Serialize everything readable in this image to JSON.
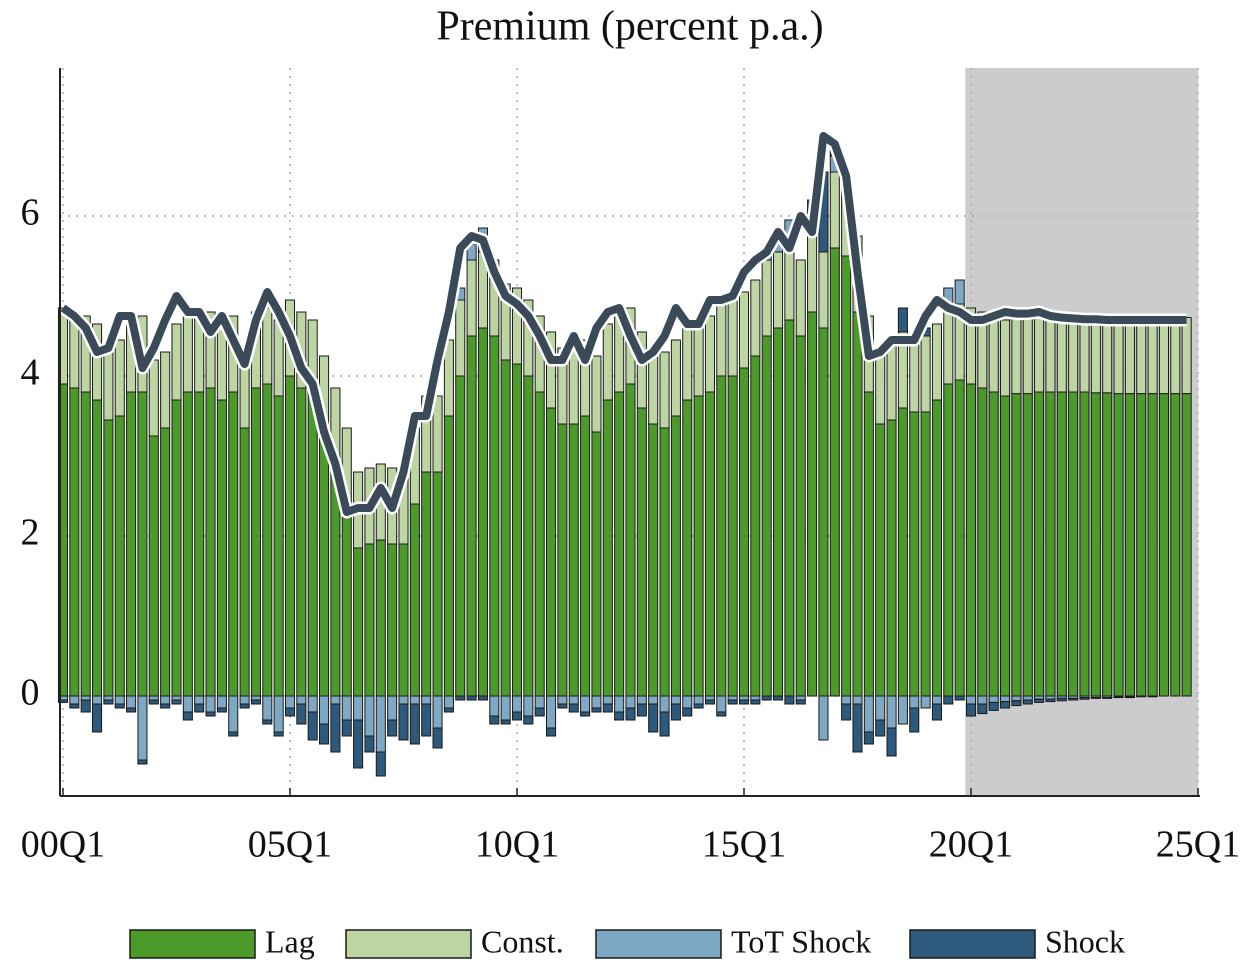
{
  "chart_data": {
    "type": "stacked-bar",
    "title": "Premium (percent p.a.)",
    "x": [
      0,
      1,
      2,
      3,
      4,
      5,
      6,
      7,
      8,
      9,
      10,
      11,
      12,
      13,
      14,
      15,
      16,
      17,
      18,
      19,
      20,
      21,
      22,
      23,
      24,
      25,
      26,
      27,
      28,
      29,
      30,
      31,
      32,
      33,
      34,
      35,
      36,
      37,
      38,
      39,
      40,
      41,
      42,
      43,
      44,
      45,
      46,
      47,
      48,
      49,
      50,
      51,
      52,
      53,
      54,
      55,
      56,
      57,
      58,
      59,
      60,
      61,
      62,
      63,
      64,
      65,
      66,
      67,
      68,
      69,
      70,
      71,
      72,
      73,
      74,
      75,
      76,
      77,
      78,
      79,
      80,
      81,
      82,
      83,
      84,
      85,
      86,
      87,
      88,
      89,
      90,
      91,
      92,
      93,
      94,
      95,
      96,
      97,
      98,
      99
    ],
    "xlim": [
      0,
      100
    ],
    "xticks": [
      {
        "value": 0,
        "label": "00Q1"
      },
      {
        "value": 20,
        "label": "05Q1"
      },
      {
        "value": 40,
        "label": "10Q1"
      },
      {
        "value": 60,
        "label": "15Q1"
      },
      {
        "value": 80,
        "label": "20Q1"
      },
      {
        "value": 100,
        "label": "25Q1"
      }
    ],
    "ylim": [
      -1.25,
      7.85
    ],
    "yticks": [
      0,
      2,
      4,
      6
    ],
    "grid": true,
    "shaded_xrange": [
      79.5,
      100
    ],
    "series": [
      {
        "name": "Lag",
        "color": "#4c9a2a",
        "values": [
          3.9,
          3.85,
          3.8,
          3.7,
          3.45,
          3.5,
          3.8,
          3.8,
          3.25,
          3.35,
          3.7,
          3.8,
          3.8,
          3.85,
          3.7,
          3.8,
          3.35,
          3.85,
          3.9,
          3.75,
          4.0,
          3.85,
          3.75,
          3.3,
          2.9,
          2.4,
          1.85,
          1.9,
          1.95,
          1.9,
          1.9,
          2.4,
          2.8,
          2.8,
          3.5,
          4.0,
          4.5,
          4.6,
          4.5,
          4.2,
          4.15,
          4.0,
          3.8,
          3.6,
          3.4,
          3.4,
          3.5,
          3.3,
          3.7,
          3.8,
          3.9,
          3.6,
          3.4,
          3.35,
          3.5,
          3.7,
          3.75,
          3.8,
          4.0,
          4.0,
          4.1,
          4.25,
          4.5,
          4.6,
          4.7,
          4.5,
          4.8,
          4.6,
          5.6,
          5.5,
          4.8,
          3.8,
          3.4,
          3.45,
          3.6,
          3.55,
          3.55,
          3.7,
          3.9,
          3.95,
          3.9,
          3.85,
          3.8,
          3.75,
          3.78,
          3.78,
          3.8,
          3.8,
          3.8,
          3.8,
          3.8,
          3.79,
          3.79,
          3.78,
          3.78,
          3.78,
          3.78,
          3.78,
          3.78,
          3.78
        ]
      },
      {
        "name": "Const.",
        "color": "#bdd5a3",
        "values": [
          0.95,
          0.95,
          0.95,
          0.95,
          0.95,
          0.95,
          0.95,
          0.95,
          0.95,
          0.95,
          0.95,
          0.95,
          0.95,
          0.95,
          0.95,
          0.95,
          0.95,
          0.95,
          0.95,
          0.95,
          0.95,
          0.95,
          0.95,
          0.95,
          0.95,
          0.95,
          0.95,
          0.95,
          0.95,
          0.95,
          0.95,
          0.95,
          0.95,
          0.95,
          0.95,
          0.95,
          0.95,
          0.95,
          0.95,
          0.95,
          0.95,
          0.95,
          0.95,
          0.95,
          0.95,
          0.95,
          0.95,
          0.95,
          0.95,
          0.95,
          0.95,
          0.95,
          0.95,
          0.95,
          0.95,
          0.95,
          0.95,
          0.95,
          0.95,
          0.95,
          0.95,
          0.95,
          0.95,
          0.95,
          0.95,
          0.95,
          0.95,
          0.95,
          0.95,
          0.95,
          0.95,
          0.95,
          0.95,
          0.95,
          0.95,
          0.95,
          0.95,
          0.95,
          0.95,
          0.95,
          0.95,
          0.95,
          0.95,
          0.95,
          0.95,
          0.95,
          0.95,
          0.95,
          0.95,
          0.95,
          0.95,
          0.95,
          0.95,
          0.95,
          0.95,
          0.95,
          0.95,
          0.95,
          0.95,
          0.95
        ]
      },
      {
        "name": "ToT Shock",
        "color": "#7fa8c4",
        "values": [
          -0.05,
          -0.1,
          -0.05,
          -0.1,
          -0.05,
          -0.1,
          -0.15,
          -0.8,
          -0.05,
          -0.1,
          -0.05,
          -0.2,
          -0.1,
          -0.2,
          -0.15,
          -0.45,
          -0.1,
          -0.05,
          -0.3,
          -0.45,
          -0.15,
          -0.1,
          -0.2,
          -0.35,
          -0.1,
          -0.3,
          -0.3,
          -0.5,
          -0.7,
          -0.3,
          -0.1,
          -0.1,
          -0.1,
          -0.4,
          -0.15,
          0.15,
          0.2,
          0.3,
          -0.25,
          -0.3,
          -0.2,
          -0.25,
          -0.15,
          -0.4,
          -0.1,
          -0.1,
          -0.2,
          -0.15,
          -0.1,
          -0.2,
          -0.15,
          -0.1,
          -0.1,
          -0.2,
          -0.1,
          -0.15,
          -0.1,
          -0.05,
          -0.2,
          -0.05,
          -0.05,
          -0.05,
          0.1,
          0.2,
          0.3,
          -0.05,
          0.15,
          -0.55,
          0.2,
          -0.1,
          -0.1,
          -0.45,
          -0.3,
          -0.4,
          -0.35,
          -0.15,
          -0.15,
          -0.1,
          0.25,
          0.3,
          -0.1,
          -0.1,
          -0.08,
          -0.07,
          -0.06,
          -0.05,
          -0.04,
          -0.04,
          -0.03,
          -0.03,
          -0.02,
          -0.02,
          -0.02,
          -0.01,
          -0.01,
          -0.01,
          -0.01,
          0,
          0,
          0
        ]
      },
      {
        "name": "Shock",
        "color": "#2d5a7c",
        "values": [
          -0.03,
          -0.05,
          -0.15,
          -0.35,
          -0.05,
          -0.05,
          -0.05,
          -0.05,
          -0.05,
          -0.05,
          -0.05,
          -0.1,
          -0.1,
          -0.05,
          -0.05,
          -0.05,
          -0.05,
          -0.05,
          -0.05,
          -0.05,
          -0.1,
          -0.25,
          -0.35,
          -0.25,
          -0.6,
          -0.2,
          -0.6,
          -0.2,
          -0.3,
          -0.2,
          -0.45,
          -0.5,
          -0.4,
          -0.25,
          -0.05,
          -0.05,
          -0.05,
          -0.05,
          -0.1,
          -0.05,
          -0.1,
          -0.1,
          -0.1,
          -0.1,
          -0.05,
          -0.1,
          -0.05,
          -0.05,
          -0.1,
          -0.1,
          -0.15,
          -0.15,
          -0.35,
          -0.3,
          -0.2,
          -0.1,
          -0.05,
          -0.05,
          -0.05,
          -0.05,
          -0.05,
          -0.05,
          -0.05,
          -0.05,
          -0.1,
          -0.05,
          0.3,
          1.0,
          0.1,
          -0.2,
          -0.6,
          -0.15,
          -0.2,
          -0.35,
          0.3,
          -0.3,
          0.1,
          -0.2,
          -0.1,
          -0.05,
          -0.15,
          -0.12,
          -0.1,
          -0.08,
          -0.06,
          -0.05,
          -0.04,
          -0.03,
          -0.03,
          -0.02,
          -0.02,
          -0.01,
          -0.01,
          -0.01,
          -0.01,
          0,
          0,
          0,
          0,
          0
        ]
      }
    ],
    "line": {
      "color": "#3a4a58",
      "values": [
        4.85,
        4.75,
        4.6,
        4.3,
        4.35,
        4.75,
        4.75,
        4.1,
        4.35,
        4.7,
        5.0,
        4.8,
        4.8,
        4.55,
        4.75,
        4.45,
        4.15,
        4.7,
        5.05,
        4.8,
        4.5,
        4.1,
        3.9,
        3.3,
        2.9,
        2.3,
        2.35,
        2.35,
        2.6,
        2.35,
        2.8,
        3.5,
        3.5,
        4.2,
        4.8,
        5.6,
        5.75,
        5.7,
        5.3,
        5.0,
        4.9,
        4.75,
        4.5,
        4.2,
        4.2,
        4.5,
        4.2,
        4.6,
        4.8,
        4.85,
        4.5,
        4.2,
        4.3,
        4.5,
        4.85,
        4.65,
        4.65,
        4.95,
        4.95,
        5.0,
        5.3,
        5.45,
        5.55,
        5.8,
        5.6,
        6.0,
        5.8,
        7.0,
        6.9,
        6.5,
        5.3,
        4.25,
        4.3,
        4.45,
        4.45,
        4.45,
        4.75,
        4.95,
        4.85,
        4.8,
        4.7,
        4.7,
        4.75,
        4.8,
        4.78,
        4.78,
        4.8,
        4.75,
        4.73,
        4.72,
        4.71,
        4.71,
        4.7,
        4.7,
        4.7,
        4.7,
        4.7,
        4.7,
        4.7,
        4.7
      ]
    }
  }
}
